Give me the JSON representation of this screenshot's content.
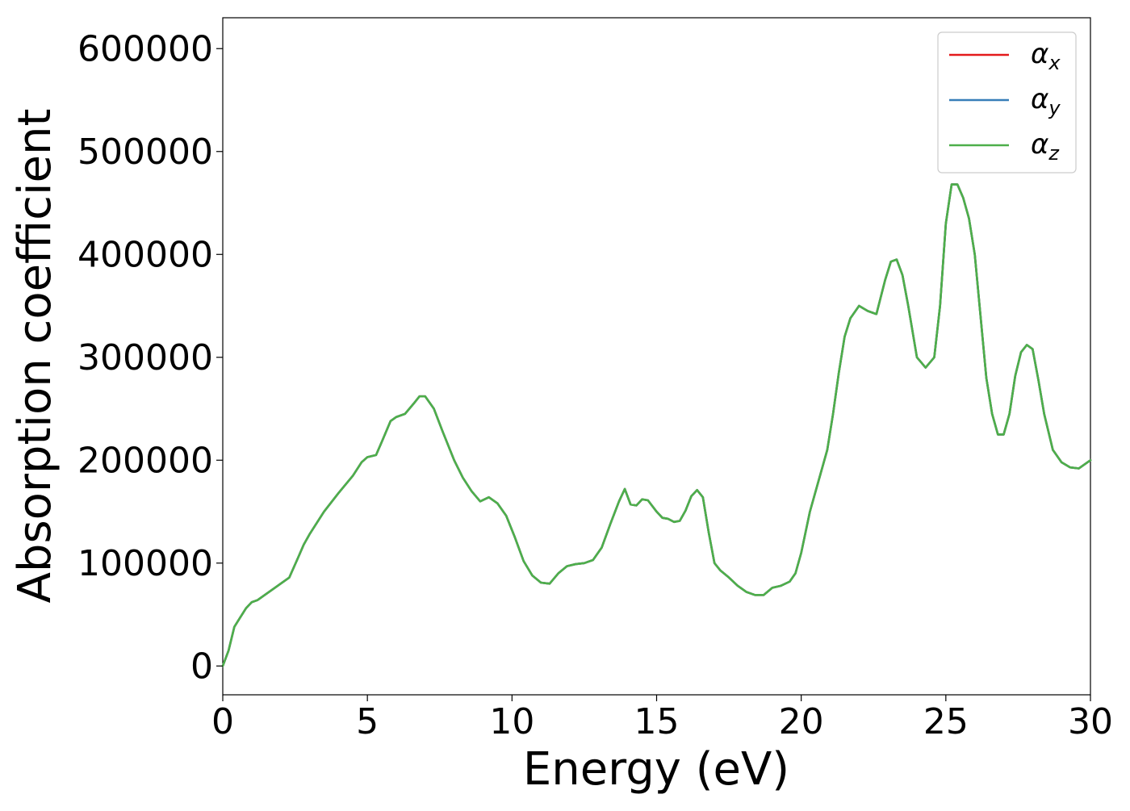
{
  "chart_data": {
    "type": "line",
    "title": "",
    "xlabel": "Energy (eV)",
    "ylabel": "Absorption coefficient",
    "xlim": [
      0,
      30
    ],
    "ylim": [
      -28000,
      630000
    ],
    "xticks": [
      0,
      5,
      10,
      15,
      20,
      25,
      30
    ],
    "xtick_labels": [
      "0",
      "5",
      "10",
      "15",
      "20",
      "25",
      "30"
    ],
    "yticks": [
      0,
      100000,
      200000,
      300000,
      400000,
      500000,
      600000
    ],
    "ytick_labels": [
      "0",
      "100000",
      "200000",
      "300000",
      "400000",
      "500000",
      "600000"
    ],
    "grid": false,
    "legend_position": "top-right",
    "series": [
      {
        "name": "αx",
        "symbol": "α",
        "subscript": "x",
        "color": "#e41a1c",
        "x": [
          0.0,
          0.2,
          0.4,
          0.6,
          0.8,
          1.0,
          1.2,
          1.5,
          1.8,
          2.0,
          2.3,
          2.6,
          2.8,
          3.0,
          3.5,
          4.0,
          4.5,
          4.8,
          5.0,
          5.3,
          5.5,
          5.8,
          6.0,
          6.3,
          6.6,
          6.8,
          7.0,
          7.3,
          7.6,
          8.0,
          8.3,
          8.6,
          8.9,
          9.2,
          9.5,
          9.8,
          10.1,
          10.4,
          10.7,
          11.0,
          11.3,
          11.6,
          11.9,
          12.2,
          12.5,
          12.8,
          13.1,
          13.4,
          13.7,
          13.9,
          14.1,
          14.3,
          14.5,
          14.7,
          15.0,
          15.2,
          15.4,
          15.6,
          15.8,
          16.0,
          16.2,
          16.4,
          16.6,
          16.8,
          17.0,
          17.2,
          17.5,
          17.8,
          18.1,
          18.4,
          18.7,
          19.0,
          19.3,
          19.6,
          19.8,
          20.0,
          20.3,
          20.6,
          20.9,
          21.1,
          21.3,
          21.5,
          21.7,
          22.0,
          22.3,
          22.6,
          22.9,
          23.1,
          23.3,
          23.5,
          23.7,
          24.0,
          24.3,
          24.6,
          24.8,
          25.0,
          25.2,
          25.4,
          25.6,
          25.8,
          26.0,
          26.2,
          26.4,
          26.6,
          26.8,
          27.0,
          27.2,
          27.4,
          27.6,
          27.8,
          28.0,
          28.2,
          28.4,
          28.7,
          29.0,
          29.3,
          29.6,
          30.0
        ],
        "y": [
          0,
          15000,
          38000,
          47000,
          56000,
          62000,
          64000,
          70000,
          76000,
          80000,
          86000,
          105000,
          118000,
          128000,
          150000,
          168000,
          185000,
          198000,
          203000,
          205000,
          218000,
          238000,
          242000,
          245000,
          255000,
          262000,
          262000,
          250000,
          228000,
          200000,
          183000,
          170000,
          160000,
          164000,
          158000,
          146000,
          125000,
          102000,
          88000,
          81000,
          80000,
          90000,
          97000,
          99000,
          100000,
          103000,
          115000,
          138000,
          160000,
          172000,
          157000,
          156000,
          162000,
          161000,
          150000,
          144000,
          143000,
          140000,
          141000,
          151000,
          165000,
          171000,
          164000,
          130000,
          100000,
          93000,
          86000,
          78000,
          72000,
          69000,
          69000,
          76000,
          78000,
          82000,
          90000,
          110000,
          150000,
          180000,
          210000,
          245000,
          285000,
          320000,
          338000,
          350000,
          345000,
          342000,
          375000,
          393000,
          395000,
          380000,
          350000,
          300000,
          290000,
          300000,
          350000,
          430000,
          468000,
          468000,
          455000,
          435000,
          400000,
          340000,
          280000,
          245000,
          225000,
          225000,
          245000,
          282000,
          305000,
          312000,
          308000,
          278000,
          245000,
          210000,
          198000,
          193000,
          192000,
          200000
        ]
      },
      {
        "name": "αy",
        "symbol": "α",
        "subscript": "y",
        "color": "#377eb8",
        "x": [
          0.0,
          0.2,
          0.4,
          0.6,
          0.8,
          1.0,
          1.2,
          1.5,
          1.8,
          2.0,
          2.3,
          2.6,
          2.8,
          3.0,
          3.5,
          4.0,
          4.5,
          4.8,
          5.0,
          5.3,
          5.5,
          5.8,
          6.0,
          6.3,
          6.6,
          6.8,
          7.0,
          7.3,
          7.6,
          8.0,
          8.3,
          8.6,
          8.9,
          9.2,
          9.5,
          9.8,
          10.1,
          10.4,
          10.7,
          11.0,
          11.3,
          11.6,
          11.9,
          12.2,
          12.5,
          12.8,
          13.1,
          13.4,
          13.7,
          13.9,
          14.1,
          14.3,
          14.5,
          14.7,
          15.0,
          15.2,
          15.4,
          15.6,
          15.8,
          16.0,
          16.2,
          16.4,
          16.6,
          16.8,
          17.0,
          17.2,
          17.5,
          17.8,
          18.1,
          18.4,
          18.7,
          19.0,
          19.3,
          19.6,
          19.8,
          20.0,
          20.3,
          20.6,
          20.9,
          21.1,
          21.3,
          21.5,
          21.7,
          22.0,
          22.3,
          22.6,
          22.9,
          23.1,
          23.3,
          23.5,
          23.7,
          24.0,
          24.3,
          24.6,
          24.8,
          25.0,
          25.2,
          25.4,
          25.6,
          25.8,
          26.0,
          26.2,
          26.4,
          26.6,
          26.8,
          27.0,
          27.2,
          27.4,
          27.6,
          27.8,
          28.0,
          28.2,
          28.4,
          28.7,
          29.0,
          29.3,
          29.6,
          30.0
        ],
        "y": [
          0,
          15000,
          38000,
          47000,
          56000,
          62000,
          64000,
          70000,
          76000,
          80000,
          86000,
          105000,
          118000,
          128000,
          150000,
          168000,
          185000,
          198000,
          203000,
          205000,
          218000,
          238000,
          242000,
          245000,
          255000,
          262000,
          262000,
          250000,
          228000,
          200000,
          183000,
          170000,
          160000,
          164000,
          158000,
          146000,
          125000,
          102000,
          88000,
          81000,
          80000,
          90000,
          97000,
          99000,
          100000,
          103000,
          115000,
          138000,
          160000,
          172000,
          157000,
          156000,
          162000,
          161000,
          150000,
          144000,
          143000,
          140000,
          141000,
          151000,
          165000,
          171000,
          164000,
          130000,
          100000,
          93000,
          86000,
          78000,
          72000,
          69000,
          69000,
          76000,
          78000,
          82000,
          90000,
          110000,
          150000,
          180000,
          210000,
          245000,
          285000,
          320000,
          338000,
          350000,
          345000,
          342000,
          375000,
          393000,
          395000,
          380000,
          350000,
          300000,
          290000,
          300000,
          350000,
          430000,
          468000,
          468000,
          455000,
          435000,
          400000,
          340000,
          280000,
          245000,
          225000,
          225000,
          245000,
          282000,
          305000,
          312000,
          308000,
          278000,
          245000,
          210000,
          198000,
          193000,
          192000,
          200000
        ]
      },
      {
        "name": "αz",
        "symbol": "α",
        "subscript": "z",
        "color": "#4daf4a",
        "x": [
          0.0,
          0.2,
          0.4,
          0.6,
          0.8,
          1.0,
          1.2,
          1.5,
          1.8,
          2.0,
          2.3,
          2.6,
          2.8,
          3.0,
          3.5,
          4.0,
          4.5,
          4.8,
          5.0,
          5.3,
          5.5,
          5.8,
          6.0,
          6.3,
          6.6,
          6.8,
          7.0,
          7.3,
          7.6,
          8.0,
          8.3,
          8.6,
          8.9,
          9.2,
          9.5,
          9.8,
          10.1,
          10.4,
          10.7,
          11.0,
          11.3,
          11.6,
          11.9,
          12.2,
          12.5,
          12.8,
          13.1,
          13.4,
          13.7,
          13.9,
          14.1,
          14.3,
          14.5,
          14.7,
          15.0,
          15.2,
          15.4,
          15.6,
          15.8,
          16.0,
          16.2,
          16.4,
          16.6,
          16.8,
          17.0,
          17.2,
          17.5,
          17.8,
          18.1,
          18.4,
          18.7,
          19.0,
          19.3,
          19.6,
          19.8,
          20.0,
          20.3,
          20.6,
          20.9,
          21.1,
          21.3,
          21.5,
          21.7,
          22.0,
          22.3,
          22.6,
          22.9,
          23.1,
          23.3,
          23.5,
          23.7,
          24.0,
          24.3,
          24.6,
          24.8,
          25.0,
          25.2,
          25.4,
          25.6,
          25.8,
          26.0,
          26.2,
          26.4,
          26.6,
          26.8,
          27.0,
          27.2,
          27.4,
          27.6,
          27.8,
          28.0,
          28.2,
          28.4,
          28.7,
          29.0,
          29.3,
          29.6,
          30.0
        ],
        "y": [
          0,
          15000,
          38000,
          47000,
          56000,
          62000,
          64000,
          70000,
          76000,
          80000,
          86000,
          105000,
          118000,
          128000,
          150000,
          168000,
          185000,
          198000,
          203000,
          205000,
          218000,
          238000,
          242000,
          245000,
          255000,
          262000,
          262000,
          250000,
          228000,
          200000,
          183000,
          170000,
          160000,
          164000,
          158000,
          146000,
          125000,
          102000,
          88000,
          81000,
          80000,
          90000,
          97000,
          99000,
          100000,
          103000,
          115000,
          138000,
          160000,
          172000,
          157000,
          156000,
          162000,
          161000,
          150000,
          144000,
          143000,
          140000,
          141000,
          151000,
          165000,
          171000,
          164000,
          130000,
          100000,
          93000,
          86000,
          78000,
          72000,
          69000,
          69000,
          76000,
          78000,
          82000,
          90000,
          110000,
          150000,
          180000,
          210000,
          245000,
          285000,
          320000,
          338000,
          350000,
          345000,
          342000,
          375000,
          393000,
          395000,
          380000,
          350000,
          300000,
          290000,
          300000,
          350000,
          430000,
          468000,
          468000,
          455000,
          435000,
          400000,
          340000,
          280000,
          245000,
          225000,
          225000,
          245000,
          282000,
          305000,
          312000,
          308000,
          278000,
          245000,
          210000,
          198000,
          193000,
          192000,
          200000
        ]
      }
    ]
  }
}
